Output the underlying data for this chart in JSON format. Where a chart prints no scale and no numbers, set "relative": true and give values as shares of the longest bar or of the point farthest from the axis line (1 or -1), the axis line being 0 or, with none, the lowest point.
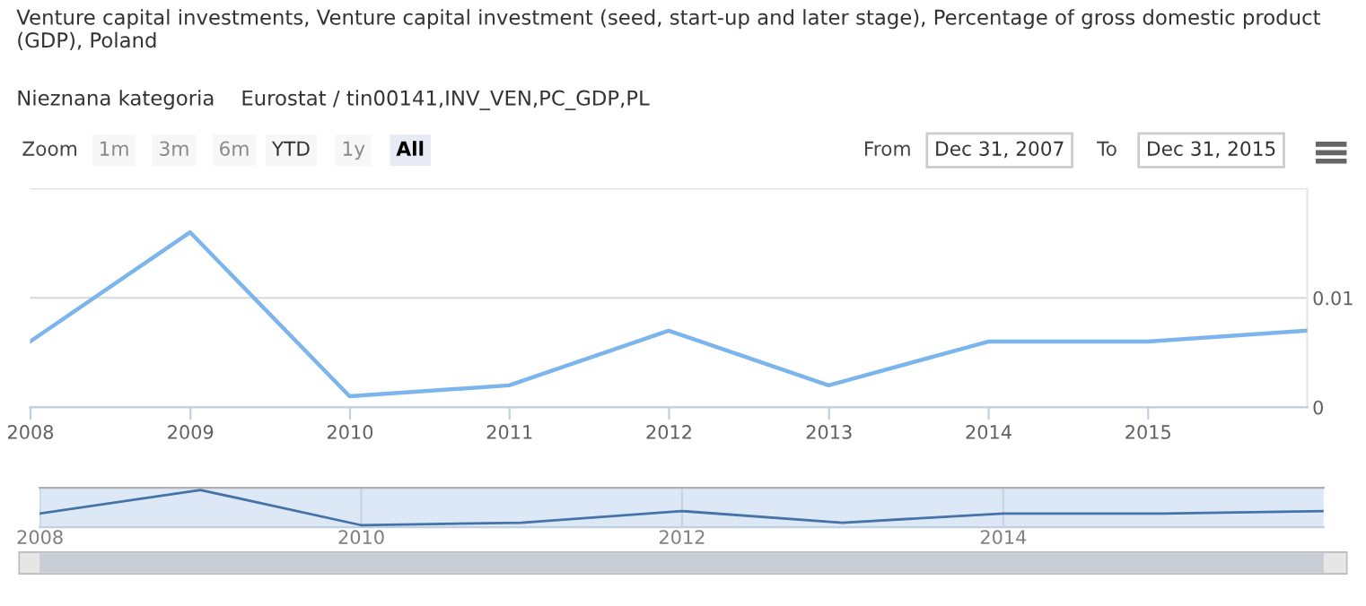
{
  "chart_data": [
    {
      "type": "line",
      "title": "Venture capital investments, Venture capital investment (seed, start-up and later stage), Percentage of gross domestic product (GDP), Poland",
      "subtitle": "Nieznana kategoria    Eurostat / tin00141,INV_VEN,PC_GDP,PL",
      "annotations": [
        "Zoom",
        "1m",
        "3m",
        "6m",
        "YTD",
        "1y",
        "All",
        "From",
        "Dec 31, 2007",
        "To",
        "Dec 31, 2015"
      ],
      "x": [
        "2007-12-31",
        "2008-12-31",
        "2009-12-31",
        "2010-12-31",
        "2011-12-31",
        "2012-12-31",
        "2013-12-31",
        "2014-12-31",
        "2015-12-31"
      ],
      "series": [
        {
          "color": "#7cb5ec",
          "values": [
            0.006,
            0.016,
            0.001,
            0.002,
            0.007,
            0.002,
            0.006,
            0.006,
            0.007
          ]
        }
      ],
      "xlim": [
        "2007-12-31",
        "2015-12-31"
      ],
      "xticks": [
        {
          "value": "2008",
          "label": "2008"
        },
        {
          "value": "2009",
          "label": "2009"
        },
        {
          "value": "2010",
          "label": "2010"
        },
        {
          "value": "2011",
          "label": "2011"
        },
        {
          "value": "2012",
          "label": "2012"
        },
        {
          "value": "2013",
          "label": "2013"
        },
        {
          "value": "2014",
          "label": "2014"
        },
        {
          "value": "2015",
          "label": "2015"
        }
      ],
      "ylim": [
        0,
        0.02
      ],
      "yticks": [
        0,
        0.01,
        {
          "value": 0.02,
          "label": null
        }
      ],
      "grid": "y",
      "marker": "none",
      "line_style": "solid"
    },
    {
      "type": "line",
      "relative": true,
      "x": [
        "2007-12-31",
        "2008-12-31",
        "2009-12-31",
        "2010-12-31",
        "2011-12-31",
        "2012-12-31",
        "2013-12-31",
        "2014-12-31",
        "2015-12-31"
      ],
      "series": [
        {
          "color": "#4572a7",
          "values": [
            0.33,
            1,
            0,
            0.07,
            0.4,
            0.07,
            0.33,
            0.33,
            0.4
          ]
        }
      ],
      "xlim": [
        "2007-12-31",
        "2015-12-31"
      ],
      "xticks": [
        {
          "value": "2008",
          "label": "2008"
        },
        {
          "value": "2010",
          "label": "2010"
        },
        {
          "value": "2012",
          "label": "2012"
        },
        {
          "value": "2014",
          "label": "2014"
        }
      ],
      "tick_labels": "x",
      "grid": "x",
      "marker": "none",
      "line_style": "solid"
    }
  ]
}
